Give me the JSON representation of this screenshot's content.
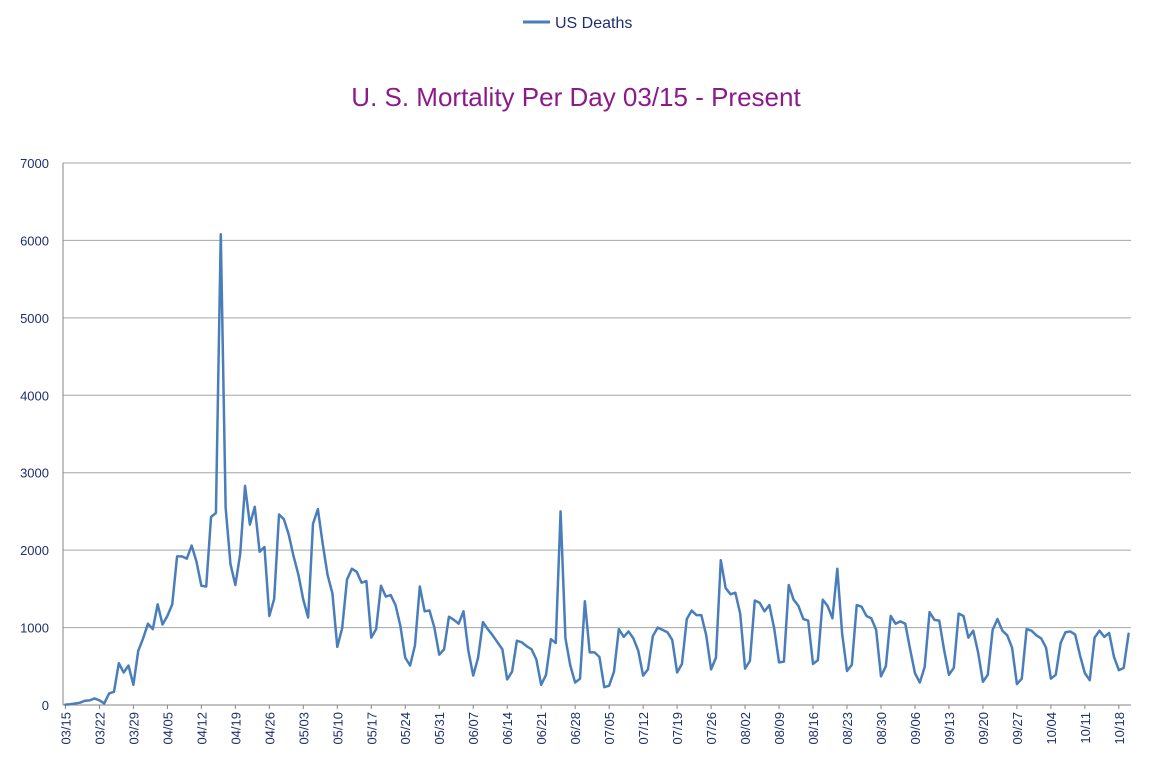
{
  "chart_data": {
    "type": "line",
    "title": "U. S. Mortality Per Day 03/15 - Present",
    "xlabel": "",
    "ylabel": "",
    "ylim": [
      0,
      7000
    ],
    "yticks": [
      0,
      1000,
      2000,
      3000,
      4000,
      5000,
      6000,
      7000
    ],
    "x_tick_labels": [
      "03/15",
      "03/22",
      "03/29",
      "04/05",
      "04/12",
      "04/19",
      "04/26",
      "05/03",
      "05/10",
      "05/17",
      "05/24",
      "05/31",
      "06/07",
      "06/14",
      "06/21",
      "06/28",
      "07/05",
      "07/12",
      "07/19",
      "07/26",
      "08/02",
      "08/09",
      "08/16",
      "08/23",
      "08/30",
      "09/06",
      "09/13",
      "09/20",
      "09/27",
      "10/04",
      "10/11",
      "10/18"
    ],
    "x_tick_every_days": 7,
    "legend": {
      "position": "top-center",
      "entries": [
        "US Deaths"
      ]
    },
    "grid": {
      "horizontal": true,
      "vertical": false
    },
    "colors": {
      "series": "#4a7ebb",
      "title": "#8b1a8b",
      "axis_text": "#1f2f6f",
      "grid": "#a6a6a6"
    },
    "series": [
      {
        "name": "US Deaths",
        "values": [
          5,
          10,
          20,
          30,
          55,
          60,
          85,
          60,
          20,
          150,
          170,
          540,
          420,
          510,
          260,
          700,
          860,
          1050,
          980,
          1300,
          1040,
          1150,
          1300,
          1920,
          1920,
          1890,
          2060,
          1850,
          1540,
          1530,
          2430,
          2480,
          6080,
          2550,
          1820,
          1550,
          1950,
          2830,
          2330,
          2560,
          1980,
          2040,
          1150,
          1370,
          2460,
          2400,
          2200,
          1920,
          1680,
          1360,
          1130,
          2340,
          2530,
          2080,
          1680,
          1440,
          750,
          990,
          1620,
          1760,
          1720,
          1580,
          1600,
          870,
          980,
          1540,
          1400,
          1420,
          1290,
          1020,
          610,
          510,
          770,
          1530,
          1210,
          1220,
          1000,
          650,
          720,
          1140,
          1100,
          1050,
          1210,
          700,
          380,
          610,
          1070,
          980,
          900,
          810,
          720,
          330,
          430,
          830,
          810,
          760,
          720,
          590,
          260,
          390,
          850,
          800,
          2500,
          860,
          510,
          290,
          340,
          1340,
          680,
          680,
          620,
          230,
          250,
          430,
          980,
          880,
          950,
          860,
          700,
          380,
          460,
          890,
          1000,
          970,
          940,
          840,
          420,
          530,
          1110,
          1220,
          1160,
          1160,
          900,
          460,
          610,
          1870,
          1510,
          1430,
          1450,
          1180,
          470,
          570,
          1350,
          1320,
          1210,
          1290,
          990,
          550,
          560,
          1550,
          1360,
          1280,
          1110,
          1090,
          530,
          580,
          1360,
          1280,
          1120,
          1760,
          920,
          440,
          520,
          1290,
          1270,
          1150,
          1120,
          970,
          370,
          500,
          1150,
          1050,
          1080,
          1050,
          720,
          410,
          290,
          490,
          1200,
          1100,
          1090,
          710,
          390,
          480,
          1180,
          1150,
          870,
          960,
          680,
          300,
          390,
          970,
          1110,
          960,
          900,
          740,
          270,
          340,
          980,
          960,
          900,
          860,
          740,
          340,
          390,
          800,
          940,
          950,
          910,
          640,
          410,
          320,
          870,
          960,
          880,
          930,
          620,
          450,
          480,
          920
        ]
      }
    ]
  }
}
